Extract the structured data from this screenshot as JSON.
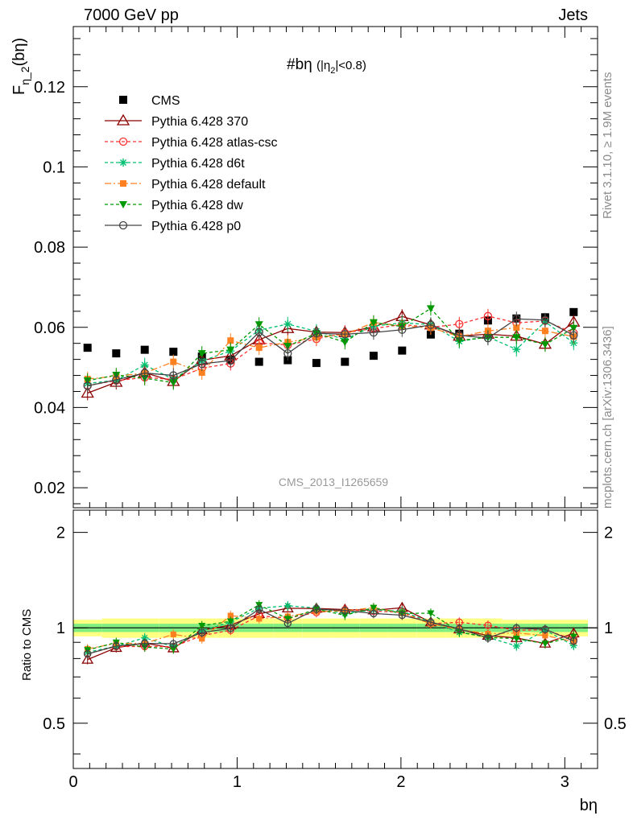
{
  "header": {
    "left": "7000 GeV pp",
    "right": "Jets"
  },
  "side_labels": {
    "rivet": "Rivet 3.1.10, ≥ 1.9M events",
    "mcplots": "mcplots.cern.ch [arXiv:1306.3436]"
  },
  "plot_title": "#bη (|η",
  "plot_title_sub": "2",
  "plot_title_end": "|<0.8)",
  "ylabel_main": "F",
  "ylabel_main_sub": "η_2",
  "ylabel_main_end": "(bη)",
  "ylabel_ratio": "Ratio to CMS",
  "xlabel": "bη",
  "watermark": "CMS_2013_I1265659",
  "colors": {
    "CMS": "#000000",
    "p370": "#8b0000",
    "atlas": "#ff3030",
    "d6t": "#00c070",
    "default": "#ff8020",
    "dw": "#009900",
    "p0": "#444444",
    "band_outer": "#ffff80",
    "band_inner": "#80ee80"
  },
  "chart_data": [
    {
      "type": "scatter",
      "panel": "main",
      "xlim": [
        0,
        3.2
      ],
      "ylim": [
        0.015,
        0.135
      ],
      "yticks": [
        "0.02",
        "0.04",
        "0.06",
        "0.08",
        "0.1",
        "0.12"
      ],
      "ytick_values": [
        0.02,
        0.04,
        0.06,
        0.08,
        0.1,
        0.12
      ],
      "x": [
        0.087,
        0.262,
        0.436,
        0.611,
        0.785,
        0.96,
        1.134,
        1.309,
        1.484,
        1.658,
        1.833,
        2.007,
        2.182,
        2.356,
        2.531,
        2.705,
        2.88,
        3.054
      ],
      "series": [
        {
          "name": "CMS",
          "key": "CMS",
          "style": "solid",
          "marker": "square",
          "values": [
            0.0549,
            0.0535,
            0.0544,
            0.0539,
            0.0527,
            0.0519,
            0.0514,
            0.0518,
            0.0511,
            0.0514,
            0.0529,
            0.0542,
            0.0582,
            0.0584,
            0.0617,
            0.0622,
            0.0625,
            0.0638
          ]
        },
        {
          "name": "Pythia 6.428 370",
          "key": "p370",
          "style": "solid",
          "marker": "triangle-open",
          "values": [
            0.0436,
            0.0463,
            0.0487,
            0.0465,
            0.0518,
            0.0529,
            0.0569,
            0.0597,
            0.0588,
            0.0587,
            0.0601,
            0.0627,
            0.0606,
            0.0578,
            0.0583,
            0.0578,
            0.0558,
            0.0613
          ]
        },
        {
          "name": "Pythia 6.428 atlas-csc",
          "key": "atlas",
          "style": "dash",
          "marker": "circle-open",
          "values": [
            0.0455,
            0.0467,
            0.0475,
            0.047,
            0.0498,
            0.051,
            0.0561,
            0.0556,
            0.0571,
            0.0586,
            0.0597,
            0.0607,
            0.06,
            0.0608,
            0.0628,
            0.0611,
            0.0616,
            0.0586
          ]
        },
        {
          "name": "Pythia 6.428 d6t",
          "key": "d6t",
          "style": "dash",
          "marker": "star",
          "values": [
            0.046,
            0.0468,
            0.0506,
            0.047,
            0.0516,
            0.0541,
            0.0593,
            0.0608,
            0.059,
            0.057,
            0.0603,
            0.0611,
            0.0607,
            0.0565,
            0.0576,
            0.0545,
            0.0614,
            0.0561
          ]
        },
        {
          "name": "Pythia 6.428 default",
          "key": "default",
          "style": "dashdot",
          "marker": "square-small",
          "values": [
            0.0471,
            0.0478,
            0.0486,
            0.0514,
            0.0487,
            0.0567,
            0.0549,
            0.0563,
            0.0575,
            0.0582,
            0.0612,
            0.0603,
            0.0599,
            0.0577,
            0.0591,
            0.0599,
            0.0591,
            0.0577
          ]
        },
        {
          "name": "Pythia 6.428 dw",
          "key": "dw",
          "style": "dash",
          "marker": "triangle-down",
          "values": [
            0.0467,
            0.0481,
            0.0473,
            0.0462,
            0.0535,
            0.0544,
            0.0607,
            0.0553,
            0.0585,
            0.0563,
            0.0612,
            0.0602,
            0.0647,
            0.0567,
            0.0575,
            0.0575,
            0.0557,
            0.0598
          ]
        },
        {
          "name": "Pythia 6.428 p0",
          "key": "p0",
          "style": "solid",
          "marker": "circle-open",
          "values": [
            0.0454,
            0.0469,
            0.0486,
            0.048,
            0.0509,
            0.0517,
            0.0588,
            0.0535,
            0.0585,
            0.0583,
            0.0587,
            0.0594,
            0.0606,
            0.058,
            0.0573,
            0.0621,
            0.0618,
            0.058
          ]
        }
      ]
    },
    {
      "type": "scatter",
      "panel": "ratio",
      "xlim": [
        0,
        3.2
      ],
      "ylim": [
        0.36,
        2.35
      ],
      "ylabel": "Ratio to CMS",
      "xlabel": "bη",
      "xticks": [
        "0",
        "1",
        "2",
        "3"
      ],
      "xtick_values": [
        0,
        1,
        2,
        3
      ],
      "yticks": [
        "0.5",
        "1",
        "2"
      ],
      "ytick_values": [
        0.5,
        1,
        2
      ],
      "reference_line": 1,
      "band": {
        "outer": [
          0.06,
          0.07,
          0.07,
          0.07,
          0.07,
          0.07,
          0.07,
          0.07,
          0.07,
          0.07,
          0.07,
          0.07,
          0.07,
          0.07,
          0.07,
          0.06,
          0.06,
          0.06
        ],
        "inner": [
          0.03,
          0.03,
          0.03,
          0.03,
          0.03,
          0.03,
          0.03,
          0.03,
          0.03,
          0.03,
          0.03,
          0.03,
          0.03,
          0.03,
          0.03,
          0.03,
          0.03,
          0.03
        ]
      }
    }
  ]
}
